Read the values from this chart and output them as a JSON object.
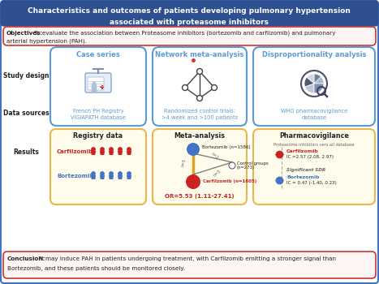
{
  "title_line1": "Characteristics and outcomes of patients developing pulmonary hypertension",
  "title_line2": "associated with proteasome inhibitors",
  "title_bg": "#2E5090",
  "title_fg": "#FFFFFF",
  "objectives_bold": "Objectives:",
  "objectives_rest": " To evaluate the association between Proteasome inhibitors (bortezomib and carfilzomib) and pulmonary",
  "objectives_line2": "arterial hypertension (PAH).",
  "objectives_border": "#CC3333",
  "objectives_bg": "#FFF5F5",
  "study_design_label": "Study design",
  "data_sources_label": "Data sources",
  "results_label": "Results",
  "box1_title": "Case series",
  "box2_title": "Network meta-analysis",
  "box3_title": "Disproportionality analysis",
  "box1_source": "French PH Registry\nVIGIAPATH database",
  "box2_source": "Randomized control trials:\n>4 week and >100 patients",
  "box3_source": "WHO pharmacovigilance\ndatabase",
  "box_border": "#5B9BD5",
  "box_bg": "#FFFFFF",
  "result1_title": "Registry data",
  "result2_title": "Meta-analysis",
  "result3_title": "Pharmacovigilance",
  "result3_subtitle": "Proteasome inhibitors vers all database",
  "carfilzomib_label": "Carfilzomib",
  "bortezomib_label": "Bortezomib",
  "bortezomib_node_label": "Bortezomib (n=1586)",
  "control_label": "Control groups\n(n=273)",
  "carfilzomib_node_label": "Carfilzomib (n=1605)",
  "or_text": "OR=5.53 (1.11-27.41)",
  "carfilzomib_ic_label": "Carfilzomib",
  "carfilzomib_ic_val": "IC =2.57 (2.08, 2.97)",
  "bortezomib_ic_label": "Bortezomib",
  "bortezomib_ic_val": "IC = 0.47 (-1.40, 0.23)",
  "significant_sdr": "Significant SDR",
  "result_bg1": "#FFFCEC",
  "result_bg2": "#FFFCEC",
  "result_bg3": "#FFFCEC",
  "result_border": "#E8B84B",
  "conclusion_bold": "Conclusion:",
  "conclusion_rest": " PI may induce PAH in patients undergoing treatment, with Carfilzomib emitting a stronger signal than",
  "conclusion_line2": "Bortezomib, and these patients should be monitored closely.",
  "conclusion_border": "#CC3333",
  "conclusion_bg": "#FFF5F5",
  "carfilzomib_color": "#CC2222",
  "bortezomib_color": "#4472C4",
  "outer_border": "#4472C4",
  "white": "#FFFFFF",
  "dark_text": "#222222",
  "gray_text": "#666666"
}
